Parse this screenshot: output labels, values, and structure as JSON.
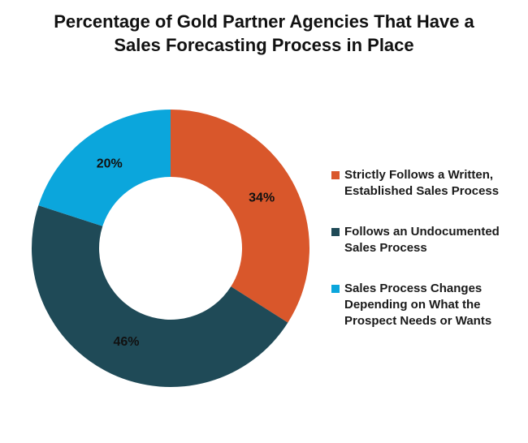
{
  "chart_data": {
    "type": "donut",
    "title": "Percentage of Gold Partner Agencies That Have a Sales Forecasting Process in Place",
    "categories": [
      "Strictly Follows a Written, Established Sales Process",
      "Follows an Undocumented Sales Process",
      "Sales Process Changes Depending on What the Prospect Needs or Wants"
    ],
    "values": [
      34,
      46,
      20
    ],
    "value_labels": [
      "34%",
      "46%",
      "20%"
    ],
    "colors": [
      "#d9572b",
      "#1f4a57",
      "#0ba6dc"
    ]
  }
}
